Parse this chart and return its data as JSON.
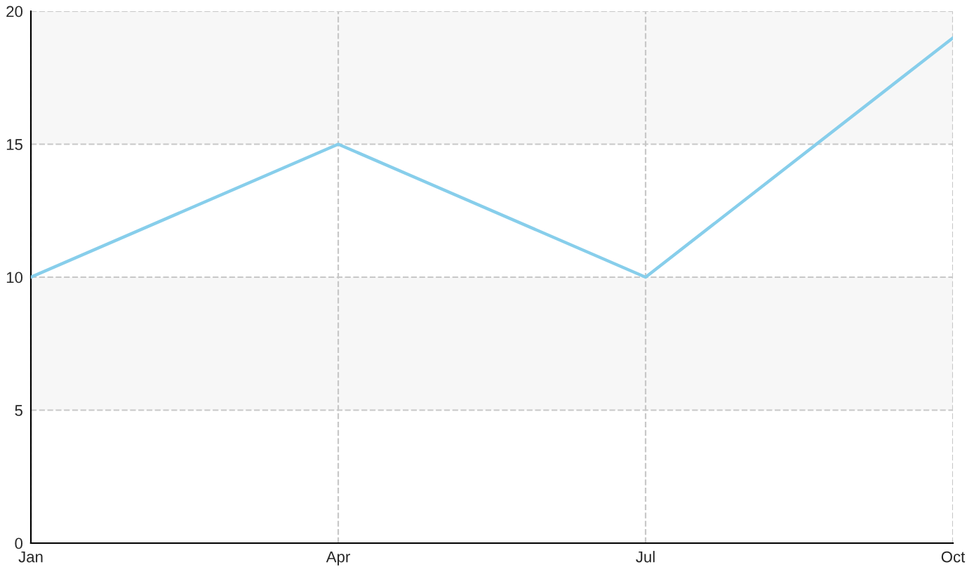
{
  "chart_data": {
    "type": "line",
    "categories": [
      "Jan",
      "Apr",
      "Jul",
      "Oct"
    ],
    "series": [
      {
        "color": "#87ceeb",
        "values": [
          10,
          15,
          10,
          19
        ]
      }
    ],
    "ylim": [
      0,
      20
    ],
    "yticks": [
      0,
      5,
      10,
      15,
      20
    ],
    "grid": true,
    "line_style": "solid",
    "bands": [
      {
        "axis": "y",
        "from": 5,
        "to": 10,
        "color": "#f7f7f7"
      },
      {
        "axis": "y",
        "from": 15,
        "to": 20,
        "color": "#f7f7f7"
      }
    ]
  }
}
